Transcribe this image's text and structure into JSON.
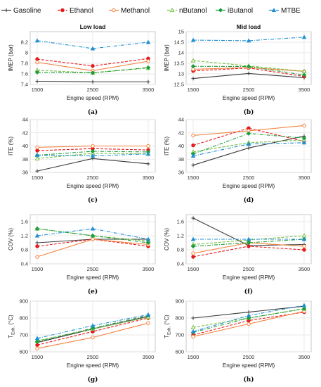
{
  "legend": [
    {
      "name": "Gasoline",
      "color": "#3a3a3a",
      "marker": "plus",
      "dash": ""
    },
    {
      "name": "Ethanol",
      "color": "#e41a1c",
      "marker": "circle-filled",
      "dash": "4,2"
    },
    {
      "name": "Methanol",
      "color": "#f47f3b",
      "marker": "circle-open",
      "dash": ""
    },
    {
      "name": "nButanol",
      "color": "#77c043",
      "marker": "tri-open",
      "dash": "4,2"
    },
    {
      "name": "iButanol",
      "color": "#1c9c3b",
      "marker": "diamond",
      "dash": "5,2,1,2"
    },
    {
      "name": "MTBE",
      "color": "#1f8fd2",
      "marker": "tri-filled",
      "dash": "5,2,1,2"
    }
  ],
  "chart_data": [
    {
      "type": "line",
      "panel": "a",
      "caption": "(a)",
      "title": "Low load",
      "xlabel": "Engine speed (RPM)",
      "ylabel": "IMEP (bar)",
      "x": [
        1500,
        2500,
        3500
      ],
      "ylim": [
        7.4,
        8.4
      ],
      "yticks": [
        "7.4",
        "7.6",
        "7.8",
        "8",
        "8.2"
      ],
      "grid": true,
      "series": [
        {
          "name": "Gasoline",
          "values": [
            7.46,
            7.45,
            7.45
          ]
        },
        {
          "name": "Ethanol",
          "values": [
            7.88,
            7.75,
            7.89
          ]
        },
        {
          "name": "Methanol",
          "values": [
            7.82,
            7.66,
            7.84
          ]
        },
        {
          "name": "nButanol",
          "values": [
            7.67,
            7.62,
            7.71
          ]
        },
        {
          "name": "iButanol",
          "values": [
            7.63,
            7.62,
            7.72
          ]
        },
        {
          "name": "MTBE",
          "values": [
            8.23,
            8.08,
            8.2
          ]
        }
      ]
    },
    {
      "type": "line",
      "panel": "b",
      "caption": "(b)",
      "title": "Mid load",
      "xlabel": "Engine speed (RPM)",
      "ylabel": "IMEP (bar)",
      "x": [
        1500,
        2500,
        3500
      ],
      "ylim": [
        12.5,
        15
      ],
      "yticks": [
        "12.5",
        "13",
        "13.5",
        "14",
        "14.5",
        "15"
      ],
      "grid": true,
      "series": [
        {
          "name": "Gasoline",
          "values": [
            12.78,
            13.02,
            12.82
          ]
        },
        {
          "name": "Ethanol",
          "values": [
            13.14,
            13.28,
            12.88
          ]
        },
        {
          "name": "Methanol",
          "values": [
            13.22,
            13.3,
            13.12
          ]
        },
        {
          "name": "nButanol",
          "values": [
            13.63,
            13.38,
            13.12
          ]
        },
        {
          "name": "iButanol",
          "values": [
            13.36,
            13.35,
            12.95
          ]
        },
        {
          "name": "MTBE",
          "values": [
            14.6,
            14.57,
            14.74
          ]
        }
      ]
    },
    {
      "type": "line",
      "panel": "c",
      "caption": "(c)",
      "xlabel": "Engine speed (RPM)",
      "ylabel": "ITE (%)",
      "x": [
        1500,
        2500,
        3500
      ],
      "ylim": [
        36,
        44
      ],
      "yticks": [
        "36",
        "38",
        "40",
        "42",
        "44"
      ],
      "grid": true,
      "series": [
        {
          "name": "Gasoline",
          "values": [
            36.2,
            38.1,
            37.3
          ]
        },
        {
          "name": "Ethanol",
          "values": [
            39.3,
            39.6,
            39.4
          ]
        },
        {
          "name": "Methanol",
          "values": [
            39.8,
            40,
            40
          ]
        },
        {
          "name": "nButanol",
          "values": [
            38.1,
            38.9,
            38.8
          ]
        },
        {
          "name": "iButanol",
          "values": [
            38.6,
            39.2,
            39.1
          ]
        },
        {
          "name": "MTBE",
          "values": [
            38.6,
            38.5,
            38.8
          ]
        }
      ]
    },
    {
      "type": "line",
      "panel": "d",
      "caption": "(d)",
      "xlabel": "Engine speed (RPM)",
      "ylabel": "ITE (%)",
      "x": [
        1500,
        2500,
        3500
      ],
      "ylim": [
        36,
        44
      ],
      "yticks": [
        "36",
        "38",
        "40",
        "42",
        "44"
      ],
      "grid": true,
      "series": [
        {
          "name": "Gasoline",
          "values": [
            37.1,
            39.7,
            41.5
          ]
        },
        {
          "name": "Ethanol",
          "values": [
            40.1,
            42.7,
            40.7
          ]
        },
        {
          "name": "Methanol",
          "values": [
            41.6,
            42.3,
            43.1
          ]
        },
        {
          "name": "nButanol",
          "values": [
            39.1,
            40.5,
            40.9
          ]
        },
        {
          "name": "iButanol",
          "values": [
            38.8,
            41.9,
            41.2
          ]
        },
        {
          "name": "MTBE",
          "values": [
            38.5,
            40.3,
            40.5
          ]
        }
      ]
    },
    {
      "type": "line",
      "panel": "e",
      "caption": "(e)",
      "xlabel": "Engine speed (RPM)",
      "ylabel": "COV (%)",
      "x": [
        1500,
        2500,
        3500
      ],
      "ylim": [
        0.4,
        1.8
      ],
      "yticks": [
        "0.4",
        "0.8",
        "1.2",
        "1.6"
      ],
      "grid": true,
      "series": [
        {
          "name": "Gasoline",
          "values": [
            1,
            1.1,
            1.1
          ]
        },
        {
          "name": "Ethanol",
          "values": [
            0.9,
            1.1,
            0.9
          ]
        },
        {
          "name": "Methanol",
          "values": [
            0.6,
            1.1,
            0.95
          ]
        },
        {
          "name": "nButanol",
          "values": [
            1.4,
            1.2,
            1.05
          ]
        },
        {
          "name": "iButanol",
          "values": [
            1.4,
            1.2,
            1
          ]
        },
        {
          "name": "MTBE",
          "values": [
            1.2,
            1.4,
            1.1
          ]
        }
      ]
    },
    {
      "type": "line",
      "panel": "f",
      "caption": "(f)",
      "xlabel": "Engine speed (RPM)",
      "ylabel": "COV (%)",
      "x": [
        1500,
        2500,
        3500
      ],
      "ylim": [
        0.4,
        1.8
      ],
      "yticks": [
        "0.4",
        "0.8",
        "1.2",
        "1.6"
      ],
      "grid": true,
      "series": [
        {
          "name": "Gasoline",
          "values": [
            1.7,
            0.92,
            0.95
          ]
        },
        {
          "name": "Ethanol",
          "values": [
            0.6,
            0.9,
            0.8
          ]
        },
        {
          "name": "Methanol",
          "values": [
            0.7,
            1,
            0.9
          ]
        },
        {
          "name": "nButanol",
          "values": [
            0.95,
            1.08,
            1.2
          ]
        },
        {
          "name": "iButanol",
          "values": [
            0.9,
            1,
            1.1
          ]
        },
        {
          "name": "MTBE",
          "values": [
            1.1,
            1.1,
            1.1
          ]
        }
      ]
    },
    {
      "type": "line",
      "panel": "g",
      "caption": "(g)",
      "xlabel": "Engine speed (RPM)",
      "ylabel": "T_Exh. (°C)",
      "x": [
        1500,
        2500,
        3500
      ],
      "ylim": [
        600,
        900
      ],
      "yticks": [
        "600",
        "700",
        "800",
        "900"
      ],
      "grid": true,
      "series": [
        {
          "name": "Gasoline",
          "values": [
            655,
            735,
            810
          ]
        },
        {
          "name": "Ethanol",
          "values": [
            640,
            720,
            800
          ]
        },
        {
          "name": "Methanol",
          "values": [
            620,
            685,
            770
          ]
        },
        {
          "name": "nButanol",
          "values": [
            665,
            735,
            805
          ]
        },
        {
          "name": "iButanol",
          "values": [
            660,
            740,
            815
          ]
        },
        {
          "name": "MTBE",
          "values": [
            680,
            755,
            820
          ]
        }
      ]
    },
    {
      "type": "line",
      "panel": "h",
      "caption": "(h)",
      "xlabel": "Engine speed (RPM)",
      "ylabel": "T_Exh. (°C)",
      "x": [
        1500,
        2500,
        3500
      ],
      "ylim": [
        600,
        900
      ],
      "yticks": [
        "600",
        "700",
        "800",
        "900"
      ],
      "grid": true,
      "series": [
        {
          "name": "Gasoline",
          "values": [
            800,
            835,
            870
          ]
        },
        {
          "name": "Ethanol",
          "values": [
            700,
            785,
            835
          ]
        },
        {
          "name": "Methanol",
          "values": [
            690,
            765,
            840
          ]
        },
        {
          "name": "nButanol",
          "values": [
            745,
            800,
            855
          ]
        },
        {
          "name": "iButanol",
          "values": [
            715,
            800,
            855
          ]
        },
        {
          "name": "MTBE",
          "values": [
            720,
            815,
            875
          ]
        }
      ]
    }
  ]
}
